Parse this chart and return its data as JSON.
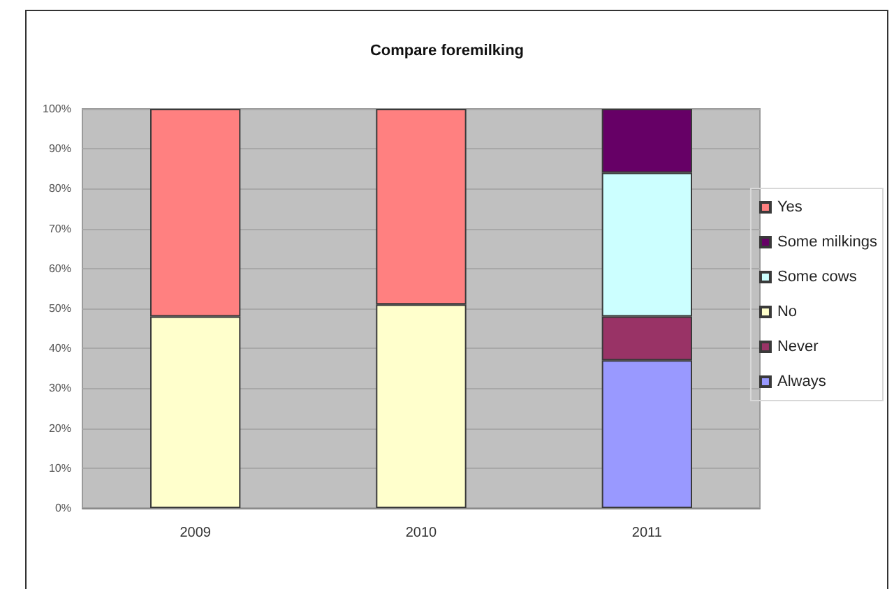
{
  "chart_data": {
    "type": "bar",
    "title": "Compare foremilking",
    "categories": [
      "2009",
      "2010",
      "2011"
    ],
    "stacked": true,
    "series": [
      {
        "name": "Always",
        "color": "#9999ff",
        "values": [
          null,
          null,
          37
        ]
      },
      {
        "name": "Never",
        "color": "#993366",
        "values": [
          null,
          null,
          11
        ]
      },
      {
        "name": "No",
        "color": "#ffffcc",
        "values": [
          48,
          51,
          null
        ]
      },
      {
        "name": "Some cows",
        "color": "#ccffff",
        "values": [
          null,
          null,
          36
        ]
      },
      {
        "name": "Some milkings",
        "color": "#660066",
        "values": [
          null,
          null,
          16
        ]
      },
      {
        "name": "Yes",
        "color": "#ff8080",
        "values": [
          52,
          49,
          null
        ]
      }
    ],
    "ylim": [
      0,
      100
    ],
    "yticks": [
      {
        "value": 0,
        "label": "0%"
      },
      {
        "value": 10,
        "label": "10%"
      },
      {
        "value": 20,
        "label": "20%"
      },
      {
        "value": 30,
        "label": "30%"
      },
      {
        "value": 40,
        "label": "40%"
      },
      {
        "value": 50,
        "label": "50%"
      },
      {
        "value": 60,
        "label": "60%"
      },
      {
        "value": 70,
        "label": "70%"
      },
      {
        "value": 80,
        "label": "80%"
      },
      {
        "value": 90,
        "label": "90%"
      },
      {
        "value": 100,
        "label": "100%"
      }
    ],
    "grid": "y",
    "legend": "right"
  }
}
